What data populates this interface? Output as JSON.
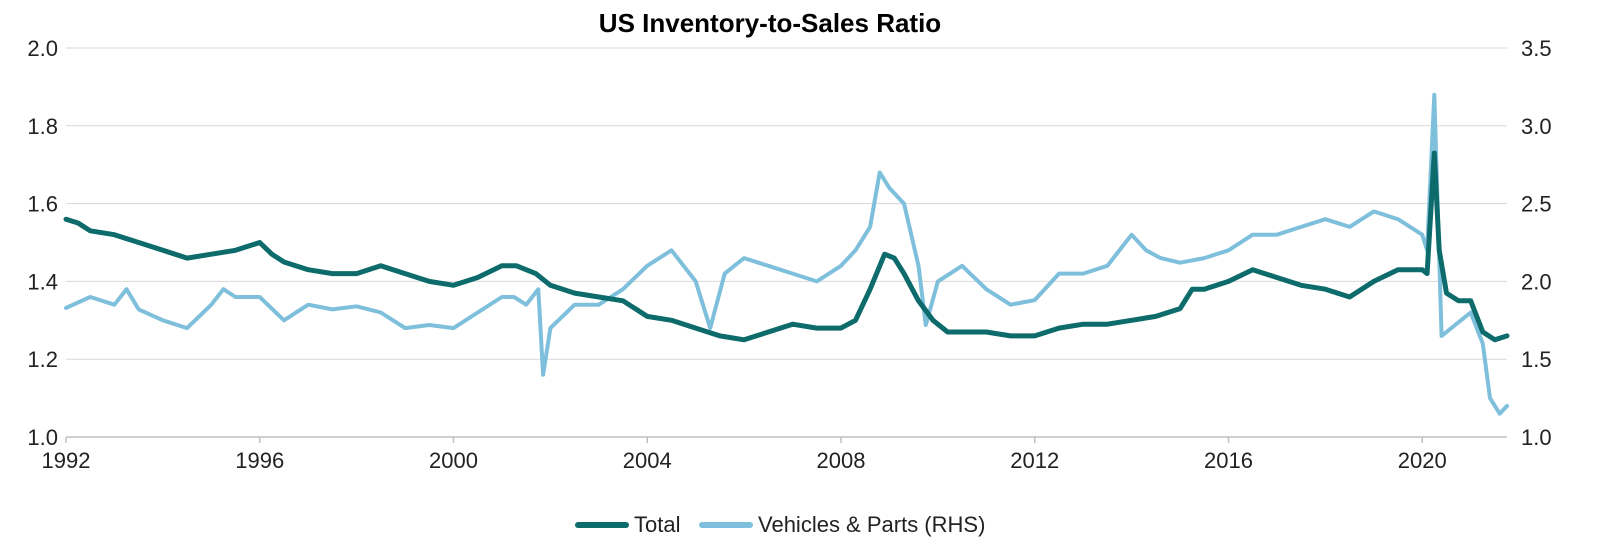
{
  "chart_data": {
    "type": "line",
    "title": "US Inventory-to-Sales Ratio",
    "xlabel": "",
    "ylabel": "",
    "x_ticks": [
      "1992",
      "1996",
      "2000",
      "2004",
      "2008",
      "2012",
      "2016",
      "2020"
    ],
    "xlim": [
      1992,
      2021.75
    ],
    "ylim_left": [
      1.0,
      2.0
    ],
    "yticks_left": [
      "1.0",
      "1.2",
      "1.4",
      "1.6",
      "1.8",
      "2.0"
    ],
    "ylim_right": [
      1.0,
      3.5
    ],
    "yticks_right": [
      "1.0",
      "1.5",
      "2.0",
      "2.5",
      "3.0",
      "3.5"
    ],
    "grid": "horizontal",
    "legend": "bottom",
    "series": [
      {
        "name": "Total",
        "axis": "left",
        "color": "#0d6b6b",
        "x": [
          1992.0,
          1992.25,
          1992.5,
          1993.0,
          1993.5,
          1994.0,
          1994.5,
          1995.0,
          1995.5,
          1996.0,
          1996.25,
          1996.5,
          1997.0,
          1997.5,
          1998.0,
          1998.5,
          1999.0,
          1999.5,
          2000.0,
          2000.5,
          2001.0,
          2001.3,
          2001.7,
          2002.0,
          2002.5,
          2003.0,
          2003.5,
          2004.0,
          2004.5,
          2005.0,
          2005.5,
          2006.0,
          2006.5,
          2007.0,
          2007.5,
          2008.0,
          2008.3,
          2008.6,
          2008.9,
          2009.1,
          2009.3,
          2009.6,
          2009.9,
          2010.2,
          2010.5,
          2011.0,
          2011.5,
          2012.0,
          2012.5,
          2013.0,
          2013.5,
          2014.0,
          2014.5,
          2015.0,
          2015.25,
          2015.5,
          2016.0,
          2016.5,
          2017.0,
          2017.5,
          2018.0,
          2018.5,
          2019.0,
          2019.5,
          2020.0,
          2020.1,
          2020.25,
          2020.35,
          2020.5,
          2020.75,
          2021.0,
          2021.25,
          2021.5,
          2021.75
        ],
        "values": [
          1.56,
          1.55,
          1.53,
          1.52,
          1.5,
          1.48,
          1.46,
          1.47,
          1.48,
          1.5,
          1.47,
          1.45,
          1.43,
          1.42,
          1.42,
          1.44,
          1.42,
          1.4,
          1.39,
          1.41,
          1.44,
          1.44,
          1.42,
          1.39,
          1.37,
          1.36,
          1.35,
          1.31,
          1.3,
          1.28,
          1.26,
          1.25,
          1.27,
          1.29,
          1.28,
          1.28,
          1.3,
          1.38,
          1.47,
          1.46,
          1.42,
          1.35,
          1.3,
          1.27,
          1.27,
          1.27,
          1.26,
          1.26,
          1.28,
          1.29,
          1.29,
          1.3,
          1.31,
          1.33,
          1.38,
          1.38,
          1.4,
          1.43,
          1.41,
          1.39,
          1.38,
          1.36,
          1.4,
          1.43,
          1.43,
          1.42,
          1.73,
          1.48,
          1.37,
          1.35,
          1.35,
          1.27,
          1.25,
          1.26
        ]
      },
      {
        "name": "Vehicles & Parts (RHS)",
        "axis": "right",
        "color": "#7ebfdc",
        "x": [
          1992.0,
          1992.5,
          1993.0,
          1993.25,
          1993.5,
          1994.0,
          1994.5,
          1995.0,
          1995.25,
          1995.5,
          1996.0,
          1996.5,
          1997.0,
          1997.5,
          1998.0,
          1998.5,
          1999.0,
          1999.5,
          2000.0,
          2000.5,
          2001.0,
          2001.25,
          2001.5,
          2001.75,
          2001.85,
          2002.0,
          2002.5,
          2003.0,
          2003.5,
          2004.0,
          2004.5,
          2004.75,
          2005.0,
          2005.3,
          2005.6,
          2006.0,
          2006.5,
          2007.0,
          2007.5,
          2008.0,
          2008.3,
          2008.6,
          2008.8,
          2009.0,
          2009.3,
          2009.6,
          2009.75,
          2010.0,
          2010.5,
          2011.0,
          2011.5,
          2012.0,
          2012.5,
          2013.0,
          2013.5,
          2014.0,
          2014.3,
          2014.6,
          2015.0,
          2015.5,
          2016.0,
          2016.5,
          2017.0,
          2017.5,
          2018.0,
          2018.5,
          2019.0,
          2019.5,
          2020.0,
          2020.1,
          2020.25,
          2020.4,
          2020.6,
          2021.0,
          2021.25,
          2021.4,
          2021.6,
          2021.75
        ],
        "values": [
          1.83,
          1.9,
          1.85,
          1.95,
          1.82,
          1.75,
          1.7,
          1.85,
          1.95,
          1.9,
          1.9,
          1.75,
          1.85,
          1.82,
          1.84,
          1.8,
          1.7,
          1.72,
          1.7,
          1.8,
          1.9,
          1.9,
          1.85,
          1.95,
          1.4,
          1.7,
          1.85,
          1.85,
          1.95,
          2.1,
          2.2,
          2.1,
          2.0,
          1.7,
          2.05,
          2.15,
          2.1,
          2.05,
          2.0,
          2.1,
          2.2,
          2.35,
          2.7,
          2.6,
          2.5,
          2.1,
          1.72,
          2.0,
          2.1,
          1.95,
          1.85,
          1.88,
          2.05,
          2.05,
          2.1,
          2.3,
          2.2,
          2.15,
          2.12,
          2.15,
          2.2,
          2.3,
          2.3,
          2.35,
          2.4,
          2.35,
          2.45,
          2.4,
          2.3,
          2.2,
          3.2,
          1.65,
          1.7,
          1.8,
          1.6,
          1.25,
          1.15,
          1.2
        ]
      }
    ]
  }
}
